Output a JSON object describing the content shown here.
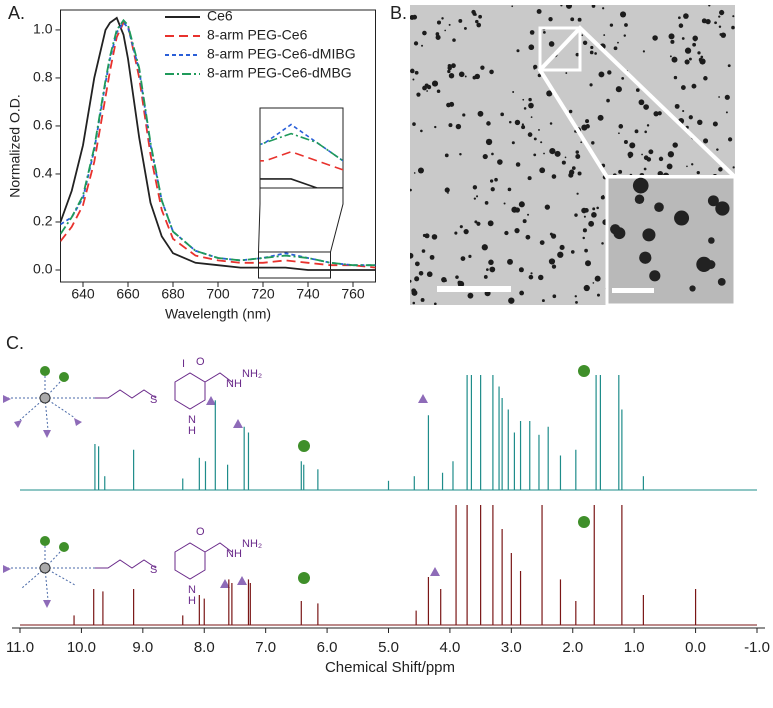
{
  "panels": {
    "a": "A.",
    "b": "B.",
    "c": "C."
  },
  "chart_data": [
    {
      "type": "line",
      "xlabel": "Wavelength (nm)",
      "ylabel": "Normalized O.D.",
      "xlim": [
        630,
        770
      ],
      "xticks": [
        640,
        660,
        680,
        700,
        720,
        740,
        760
      ],
      "ylim": [
        -0.05,
        1.083
      ],
      "yticks": [
        {
          "value": 0,
          "label": "0.0"
        },
        0.2,
        0.4,
        0.6,
        0.8,
        {
          "value": 1,
          "label": "1.0"
        }
      ],
      "legend": "upper right",
      "inset": {
        "xlim": [
          718,
          750
        ],
        "ylim": [
          0,
          0.075
        ]
      },
      "x": [
        630,
        635,
        640,
        645,
        650,
        652,
        655,
        658,
        660,
        665,
        670,
        675,
        680,
        690,
        700,
        710,
        720,
        730,
        740,
        750,
        760,
        770
      ],
      "series": [
        {
          "name": "Ce6",
          "color": "#222222",
          "line_style": "solid",
          "values": [
            0.2,
            0.33,
            0.52,
            0.8,
            1.0,
            1.03,
            1.05,
            0.98,
            0.88,
            0.55,
            0.28,
            0.14,
            0.07,
            0.03,
            0.02,
            0.01,
            0.01,
            0.01,
            0.0,
            0.0,
            0.0,
            0.0
          ]
        },
        {
          "name": "8-arm PEG-Ce6",
          "color": "#e8322d",
          "line_style": "dashed",
          "values": [
            0.12,
            0.18,
            0.27,
            0.45,
            0.72,
            0.83,
            0.97,
            1.03,
            1.02,
            0.8,
            0.48,
            0.25,
            0.13,
            0.06,
            0.04,
            0.03,
            0.03,
            0.04,
            0.03,
            0.02,
            0.02,
            0.01
          ]
        },
        {
          "name": "8-arm PEG-Ce6-dMIBG",
          "color": "#2a5fd8",
          "line_style": "dotted",
          "values": [
            0.19,
            0.22,
            0.3,
            0.5,
            0.78,
            0.88,
            0.99,
            1.03,
            1.01,
            0.83,
            0.52,
            0.29,
            0.16,
            0.08,
            0.05,
            0.04,
            0.05,
            0.07,
            0.05,
            0.03,
            0.02,
            0.02
          ]
        },
        {
          "name": "8-arm PEG-Ce6-dMBG",
          "color": "#1f9a5a",
          "line_style": "dashdot",
          "values": [
            0.15,
            0.22,
            0.31,
            0.51,
            0.79,
            0.89,
            1.0,
            1.04,
            1.02,
            0.84,
            0.53,
            0.29,
            0.16,
            0.08,
            0.05,
            0.04,
            0.05,
            0.06,
            0.05,
            0.03,
            0.02,
            0.02
          ]
        }
      ]
    },
    {
      "type": "spectrum",
      "xlabel": "Chemical Shift/ppm",
      "xlim": [
        11,
        -1
      ],
      "xticks": [
        {
          "value": 11,
          "label": "11.0"
        },
        {
          "value": 10,
          "label": "10.0"
        },
        {
          "value": 9,
          "label": "9.0"
        },
        {
          "value": 8,
          "label": "8.0"
        },
        {
          "value": 7,
          "label": "7.0"
        },
        {
          "value": 6,
          "label": "6.0"
        },
        {
          "value": 5,
          "label": "5.0"
        },
        {
          "value": 4,
          "label": "4.0"
        },
        {
          "value": 3,
          "label": "3.0"
        },
        {
          "value": 2,
          "label": "2.0"
        },
        {
          "value": 1,
          "label": "1.0"
        },
        {
          "value": 0,
          "label": "0.0"
        },
        {
          "value": -1,
          "label": "-1.0"
        }
      ],
      "ylim": [
        0,
        100
      ],
      "series": [
        {
          "color": "#1e8c8a",
          "x": [
            9.78,
            9.72,
            9.62,
            9.15,
            8.35,
            8.08,
            7.98,
            7.82,
            7.62,
            7.35,
            7.28,
            6.42,
            6.38,
            6.15,
            5.0,
            4.58,
            4.35,
            4.12,
            3.95,
            3.72,
            3.65,
            3.5,
            3.3,
            3.2,
            3.15,
            3.05,
            2.95,
            2.85,
            2.7,
            2.55,
            2.4,
            2.2,
            1.95,
            1.62,
            1.55,
            1.25,
            1.2,
            0.85
          ],
          "values": [
            40,
            38,
            12,
            35,
            10,
            28,
            25,
            78,
            22,
            55,
            50,
            25,
            22,
            18,
            8,
            12,
            65,
            15,
            25,
            100,
            100,
            100,
            100,
            90,
            80,
            70,
            50,
            60,
            60,
            48,
            55,
            30,
            35,
            100,
            100,
            100,
            70,
            12
          ]
        },
        {
          "color": "#7a1616",
          "x": [
            10.12,
            9.8,
            9.65,
            9.15,
            8.35,
            8.08,
            8.0,
            7.6,
            7.55,
            7.28,
            7.25,
            6.42,
            6.15,
            4.55,
            4.35,
            4.15,
            3.9,
            3.72,
            3.5,
            3.3,
            3.15,
            3.0,
            2.85,
            2.5,
            2.2,
            1.95,
            1.65,
            1.2,
            0.85,
            0.0
          ],
          "values": [
            8,
            30,
            28,
            30,
            8,
            25,
            22,
            38,
            35,
            38,
            35,
            20,
            18,
            12,
            40,
            30,
            100,
            100,
            100,
            100,
            80,
            60,
            45,
            100,
            38,
            20,
            100,
            100,
            25,
            30
          ]
        }
      ]
    }
  ],
  "structures": [
    {
      "labels": [
        "S",
        "O",
        "N",
        "H",
        "I",
        "NH",
        "NH₂"
      ]
    },
    {
      "labels": [
        "S",
        "O",
        "N",
        "H",
        "NH",
        "NH₂"
      ]
    }
  ]
}
